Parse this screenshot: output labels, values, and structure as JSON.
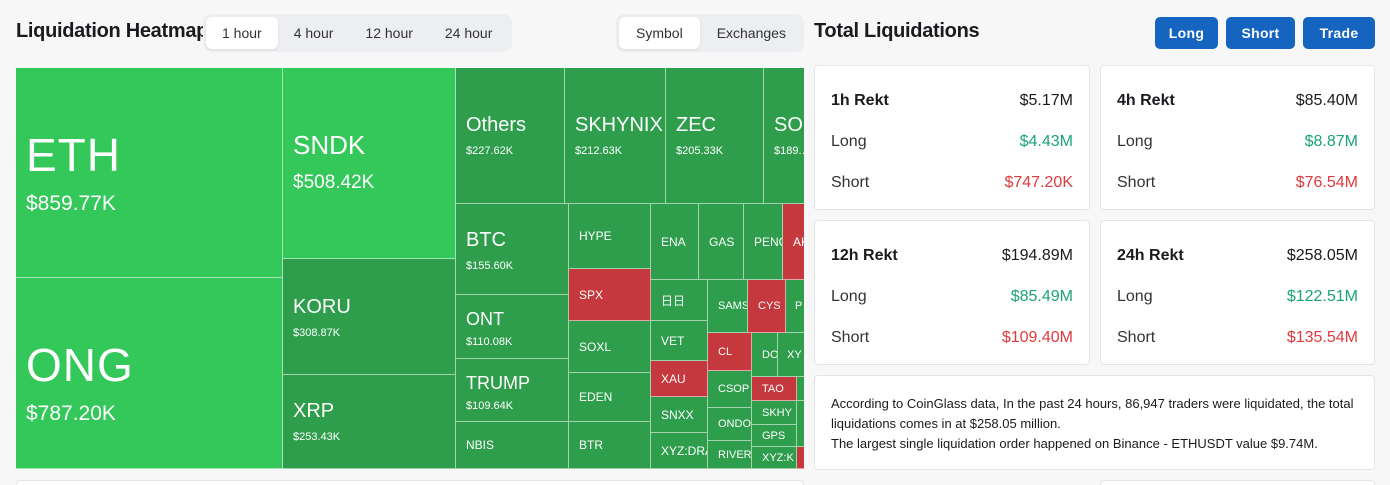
{
  "heatmap": {
    "title": "Liquidation Heatmap",
    "time_options": [
      "1 hour",
      "4 hour",
      "12 hour",
      "24 hour"
    ],
    "time_selected": "1 hour",
    "view_options": [
      "Symbol",
      "Exchanges"
    ],
    "view_selected": "Symbol",
    "tiles": [
      {
        "symbol": "ETH",
        "value": "$859.77K"
      },
      {
        "symbol": "ONG",
        "value": "$787.20K"
      },
      {
        "symbol": "SNDK",
        "value": "$508.42K"
      },
      {
        "symbol": "KORU",
        "value": "$308.87K"
      },
      {
        "symbol": "XRP",
        "value": "$253.43K"
      },
      {
        "symbol": "Others",
        "value": "$227.62K"
      },
      {
        "symbol": "SKHYNIX",
        "value": "$212.63K"
      },
      {
        "symbol": "ZEC",
        "value": "$205.33K"
      },
      {
        "symbol": "SOL",
        "value": "$189.…"
      },
      {
        "symbol": "BTC",
        "value": "$155.60K"
      },
      {
        "symbol": "ONT",
        "value": "$110.08K"
      },
      {
        "symbol": "TRUMP",
        "value": "$109.64K"
      },
      {
        "symbol": "NBIS"
      },
      {
        "symbol": "HYPE"
      },
      {
        "symbol": "SPX"
      },
      {
        "symbol": "SOXL"
      },
      {
        "symbol": "EDEN"
      },
      {
        "symbol": "BTR"
      },
      {
        "symbol": "ENA"
      },
      {
        "symbol": "GAS"
      },
      {
        "symbol": "PENG"
      },
      {
        "symbol": "AK"
      },
      {
        "symbol": "日日"
      },
      {
        "symbol": "VET"
      },
      {
        "symbol": "XAU"
      },
      {
        "symbol": "SNXX"
      },
      {
        "symbol": "XYZ:DRA"
      },
      {
        "symbol": "SAMS"
      },
      {
        "symbol": "CYS"
      },
      {
        "symbol": "P"
      },
      {
        "symbol": "CL"
      },
      {
        "symbol": "DO"
      },
      {
        "symbol": "XY"
      },
      {
        "symbol": "CSOP"
      },
      {
        "symbol": "TAO"
      },
      {
        "symbol": "ONDO"
      },
      {
        "symbol": "SKHY"
      },
      {
        "symbol": "GPS"
      },
      {
        "symbol": "RIVER"
      },
      {
        "symbol": "XYZ:K"
      }
    ]
  },
  "totals": {
    "title": "Total Liquidations",
    "buttons": {
      "long": "Long",
      "short": "Short",
      "trade": "Trade"
    },
    "cards": [
      {
        "label": "1h Rekt",
        "total": "$5.17M",
        "long_label": "Long",
        "long": "$4.43M",
        "short_label": "Short",
        "short": "$747.20K"
      },
      {
        "label": "4h Rekt",
        "total": "$85.40M",
        "long_label": "Long",
        "long": "$8.87M",
        "short_label": "Short",
        "short": "$76.54M"
      },
      {
        "label": "12h Rekt",
        "total": "$194.89M",
        "long_label": "Long",
        "long": "$85.49M",
        "short_label": "Short",
        "short": "$109.40M"
      },
      {
        "label": "24h Rekt",
        "total": "$258.05M",
        "long_label": "Long",
        "long": "$122.51M",
        "short_label": "Short",
        "short": "$135.54M"
      }
    ],
    "note_line1": "According to CoinGlass data, In the past 24 hours, 86,947 traders were liquidated, the total liquidations comes in at $258.05 million.",
    "note_line2": "The largest single liquidation order happened on Binance - ETHUSDT value $9.74M."
  },
  "colors": {
    "long": "#1aa37a",
    "short": "#e03a3e",
    "accent": "#1565c0",
    "tile_green": "#2e9e4c",
    "tile_bright": "#34c759",
    "tile_red": "#c4383e"
  }
}
